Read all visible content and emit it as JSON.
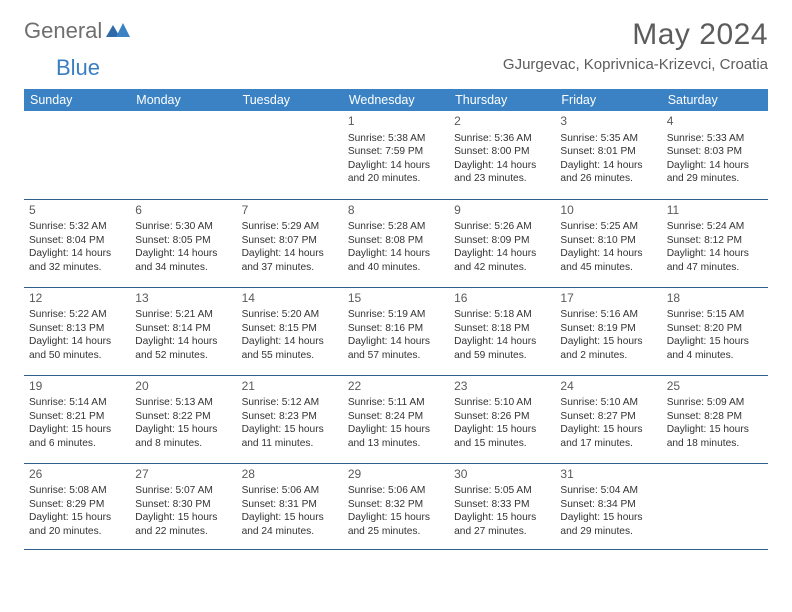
{
  "logo": {
    "text1": "General",
    "text2": "Blue"
  },
  "title": "May 2024",
  "location": "GJurgevac, Koprivnica-Krizevci, Croatia",
  "colors": {
    "header_bg": "#3a82c4",
    "header_text": "#ffffff",
    "border": "#2e5f8f",
    "title_color": "#5c5c5c",
    "logo_gray": "#6f6f6f",
    "logo_blue": "#3a7fc2",
    "body_text": "#333333",
    "daynum": "#5a5a5a"
  },
  "day_headers": [
    "Sunday",
    "Monday",
    "Tuesday",
    "Wednesday",
    "Thursday",
    "Friday",
    "Saturday"
  ],
  "weeks": [
    [
      null,
      null,
      null,
      {
        "n": "1",
        "sr": "Sunrise: 5:38 AM",
        "ss": "Sunset: 7:59 PM",
        "dl1": "Daylight: 14 hours",
        "dl2": "and 20 minutes."
      },
      {
        "n": "2",
        "sr": "Sunrise: 5:36 AM",
        "ss": "Sunset: 8:00 PM",
        "dl1": "Daylight: 14 hours",
        "dl2": "and 23 minutes."
      },
      {
        "n": "3",
        "sr": "Sunrise: 5:35 AM",
        "ss": "Sunset: 8:01 PM",
        "dl1": "Daylight: 14 hours",
        "dl2": "and 26 minutes."
      },
      {
        "n": "4",
        "sr": "Sunrise: 5:33 AM",
        "ss": "Sunset: 8:03 PM",
        "dl1": "Daylight: 14 hours",
        "dl2": "and 29 minutes."
      }
    ],
    [
      {
        "n": "5",
        "sr": "Sunrise: 5:32 AM",
        "ss": "Sunset: 8:04 PM",
        "dl1": "Daylight: 14 hours",
        "dl2": "and 32 minutes."
      },
      {
        "n": "6",
        "sr": "Sunrise: 5:30 AM",
        "ss": "Sunset: 8:05 PM",
        "dl1": "Daylight: 14 hours",
        "dl2": "and 34 minutes."
      },
      {
        "n": "7",
        "sr": "Sunrise: 5:29 AM",
        "ss": "Sunset: 8:07 PM",
        "dl1": "Daylight: 14 hours",
        "dl2": "and 37 minutes."
      },
      {
        "n": "8",
        "sr": "Sunrise: 5:28 AM",
        "ss": "Sunset: 8:08 PM",
        "dl1": "Daylight: 14 hours",
        "dl2": "and 40 minutes."
      },
      {
        "n": "9",
        "sr": "Sunrise: 5:26 AM",
        "ss": "Sunset: 8:09 PM",
        "dl1": "Daylight: 14 hours",
        "dl2": "and 42 minutes."
      },
      {
        "n": "10",
        "sr": "Sunrise: 5:25 AM",
        "ss": "Sunset: 8:10 PM",
        "dl1": "Daylight: 14 hours",
        "dl2": "and 45 minutes."
      },
      {
        "n": "11",
        "sr": "Sunrise: 5:24 AM",
        "ss": "Sunset: 8:12 PM",
        "dl1": "Daylight: 14 hours",
        "dl2": "and 47 minutes."
      }
    ],
    [
      {
        "n": "12",
        "sr": "Sunrise: 5:22 AM",
        "ss": "Sunset: 8:13 PM",
        "dl1": "Daylight: 14 hours",
        "dl2": "and 50 minutes."
      },
      {
        "n": "13",
        "sr": "Sunrise: 5:21 AM",
        "ss": "Sunset: 8:14 PM",
        "dl1": "Daylight: 14 hours",
        "dl2": "and 52 minutes."
      },
      {
        "n": "14",
        "sr": "Sunrise: 5:20 AM",
        "ss": "Sunset: 8:15 PM",
        "dl1": "Daylight: 14 hours",
        "dl2": "and 55 minutes."
      },
      {
        "n": "15",
        "sr": "Sunrise: 5:19 AM",
        "ss": "Sunset: 8:16 PM",
        "dl1": "Daylight: 14 hours",
        "dl2": "and 57 minutes."
      },
      {
        "n": "16",
        "sr": "Sunrise: 5:18 AM",
        "ss": "Sunset: 8:18 PM",
        "dl1": "Daylight: 14 hours",
        "dl2": "and 59 minutes."
      },
      {
        "n": "17",
        "sr": "Sunrise: 5:16 AM",
        "ss": "Sunset: 8:19 PM",
        "dl1": "Daylight: 15 hours",
        "dl2": "and 2 minutes."
      },
      {
        "n": "18",
        "sr": "Sunrise: 5:15 AM",
        "ss": "Sunset: 8:20 PM",
        "dl1": "Daylight: 15 hours",
        "dl2": "and 4 minutes."
      }
    ],
    [
      {
        "n": "19",
        "sr": "Sunrise: 5:14 AM",
        "ss": "Sunset: 8:21 PM",
        "dl1": "Daylight: 15 hours",
        "dl2": "and 6 minutes."
      },
      {
        "n": "20",
        "sr": "Sunrise: 5:13 AM",
        "ss": "Sunset: 8:22 PM",
        "dl1": "Daylight: 15 hours",
        "dl2": "and 8 minutes."
      },
      {
        "n": "21",
        "sr": "Sunrise: 5:12 AM",
        "ss": "Sunset: 8:23 PM",
        "dl1": "Daylight: 15 hours",
        "dl2": "and 11 minutes."
      },
      {
        "n": "22",
        "sr": "Sunrise: 5:11 AM",
        "ss": "Sunset: 8:24 PM",
        "dl1": "Daylight: 15 hours",
        "dl2": "and 13 minutes."
      },
      {
        "n": "23",
        "sr": "Sunrise: 5:10 AM",
        "ss": "Sunset: 8:26 PM",
        "dl1": "Daylight: 15 hours",
        "dl2": "and 15 minutes."
      },
      {
        "n": "24",
        "sr": "Sunrise: 5:10 AM",
        "ss": "Sunset: 8:27 PM",
        "dl1": "Daylight: 15 hours",
        "dl2": "and 17 minutes."
      },
      {
        "n": "25",
        "sr": "Sunrise: 5:09 AM",
        "ss": "Sunset: 8:28 PM",
        "dl1": "Daylight: 15 hours",
        "dl2": "and 18 minutes."
      }
    ],
    [
      {
        "n": "26",
        "sr": "Sunrise: 5:08 AM",
        "ss": "Sunset: 8:29 PM",
        "dl1": "Daylight: 15 hours",
        "dl2": "and 20 minutes."
      },
      {
        "n": "27",
        "sr": "Sunrise: 5:07 AM",
        "ss": "Sunset: 8:30 PM",
        "dl1": "Daylight: 15 hours",
        "dl2": "and 22 minutes."
      },
      {
        "n": "28",
        "sr": "Sunrise: 5:06 AM",
        "ss": "Sunset: 8:31 PM",
        "dl1": "Daylight: 15 hours",
        "dl2": "and 24 minutes."
      },
      {
        "n": "29",
        "sr": "Sunrise: 5:06 AM",
        "ss": "Sunset: 8:32 PM",
        "dl1": "Daylight: 15 hours",
        "dl2": "and 25 minutes."
      },
      {
        "n": "30",
        "sr": "Sunrise: 5:05 AM",
        "ss": "Sunset: 8:33 PM",
        "dl1": "Daylight: 15 hours",
        "dl2": "and 27 minutes."
      },
      {
        "n": "31",
        "sr": "Sunrise: 5:04 AM",
        "ss": "Sunset: 8:34 PM",
        "dl1": "Daylight: 15 hours",
        "dl2": "and 29 minutes."
      },
      null
    ]
  ]
}
